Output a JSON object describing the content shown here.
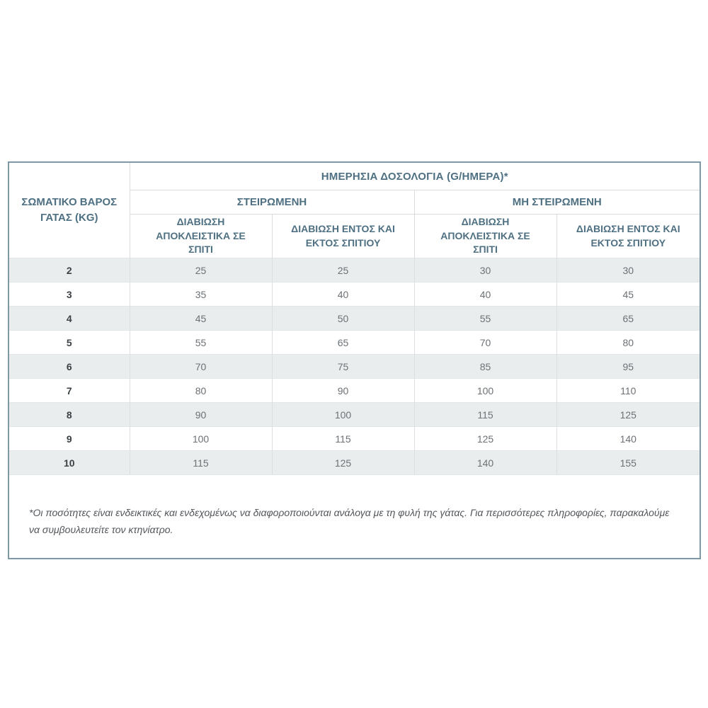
{
  "colors": {
    "accent_header_text": "#4e7082",
    "outer_border": "#7e98a6",
    "stripe_row_bg": "#e9edee",
    "value_text": "#6c7175",
    "weight_text": "#3b4145"
  },
  "table": {
    "corner_header": "ΣΩΜΑΤΙΚΟ ΒΑΡΟΣ ΓΑΤΑΣ (KG)",
    "main_header": "ΗΜΕΡΗΣΙΑ ΔΟΣΟΛΟΓΙΑ (G/ΗΜΕΡΑ)*",
    "groups": [
      "ΣΤΕΙΡΩΜΕΝΗ",
      "ΜΗ ΣΤΕΙΡΩΜΕΝΗ"
    ],
    "sub_headers": [
      "ΔΙΑΒΙΩΣΗ ΑΠΟΚΛΕΙΣΤΙΚΑ ΣΕ ΣΠΙΤΙ",
      "ΔΙΑΒΙΩΣΗ ΕΝΤΟΣ ΚΑΙ ΕΚΤΟΣ ΣΠΙΤΙΟΥ",
      "ΔΙΑΒΙΩΣΗ ΑΠΟΚΛΕΙΣΤΙΚΑ ΣΕ ΣΠΙΤΙ",
      "ΔΙΑΒΙΩΣΗ ΕΝΤΟΣ ΚΑΙ ΕΚΤΟΣ ΣΠΙΤΙΟΥ"
    ],
    "rows": [
      {
        "weight": "2",
        "values": [
          "25",
          "25",
          "30",
          "30"
        ]
      },
      {
        "weight": "3",
        "values": [
          "35",
          "40",
          "40",
          "45"
        ]
      },
      {
        "weight": "4",
        "values": [
          "45",
          "50",
          "55",
          "65"
        ]
      },
      {
        "weight": "5",
        "values": [
          "55",
          "65",
          "70",
          "80"
        ]
      },
      {
        "weight": "6",
        "values": [
          "70",
          "75",
          "85",
          "95"
        ]
      },
      {
        "weight": "7",
        "values": [
          "80",
          "90",
          "100",
          "110"
        ]
      },
      {
        "weight": "8",
        "values": [
          "90",
          "100",
          "115",
          "125"
        ]
      },
      {
        "weight": "9",
        "values": [
          "100",
          "115",
          "125",
          "140"
        ]
      },
      {
        "weight": "10",
        "values": [
          "115",
          "125",
          "140",
          "155"
        ]
      }
    ],
    "footnote": "*Οι ποσότητες είναι ενδεικτικές και ενδεχομένως να διαφοροποιούνται ανάλογα με τη φυλή της γάτας. Για περισσότερες πληροφορίες, παρακαλούμε να συμβουλευτείτε τον κτηνίατρο."
  }
}
